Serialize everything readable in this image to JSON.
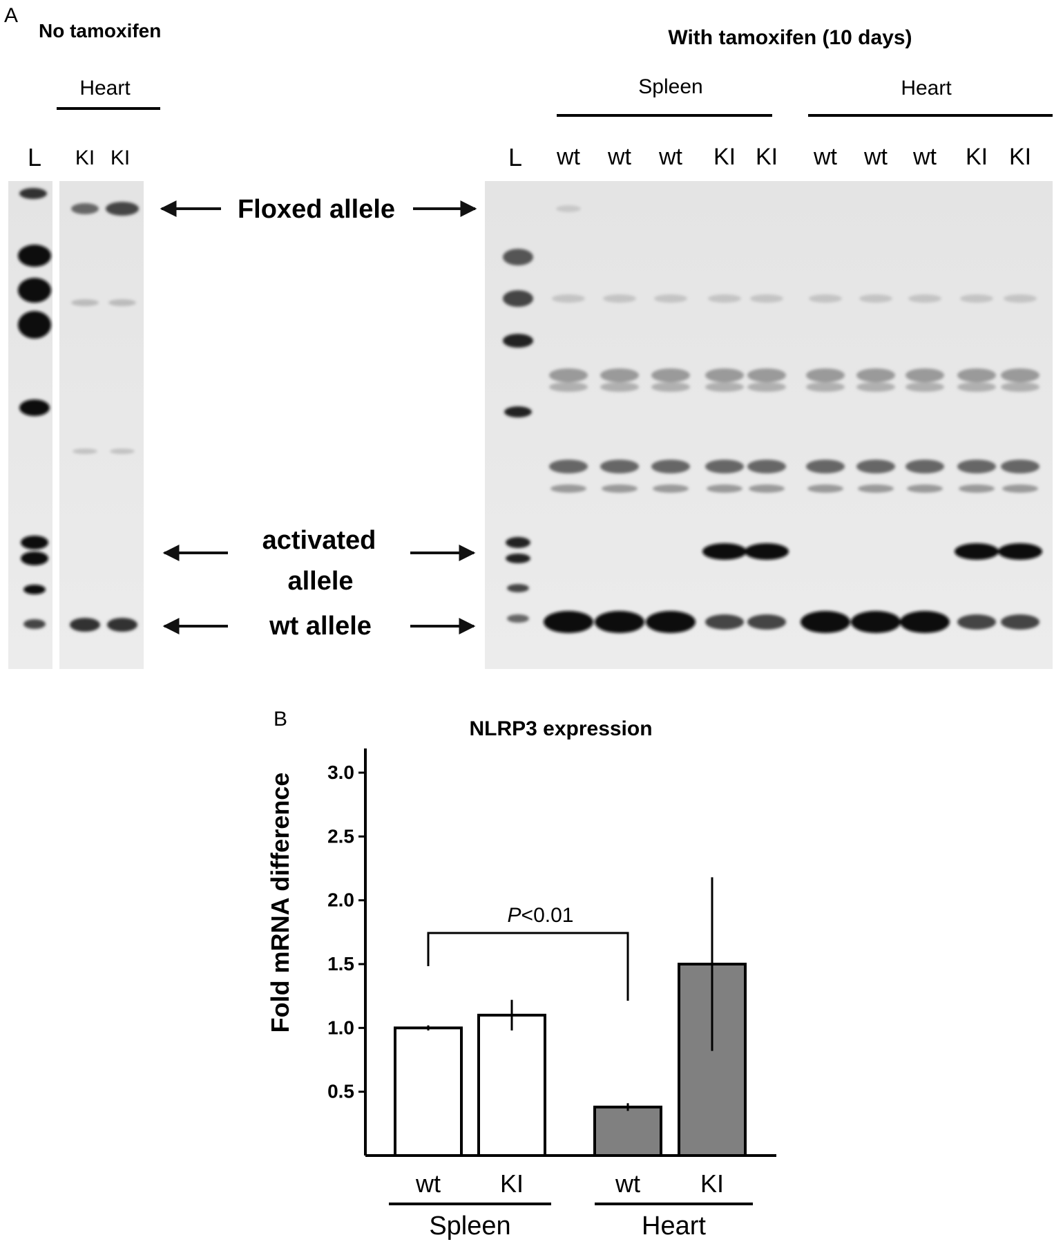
{
  "panel_a": {
    "panel_letter": "A",
    "left_title": "No tamoxifen",
    "right_title": "With tamoxifen (10 days)",
    "left_group": "Heart",
    "right_groups": [
      "Spleen",
      "Heart"
    ],
    "ladder_label": "L",
    "left_lanes": [
      "KI",
      "KI"
    ],
    "right_lanes": [
      "wt",
      "wt",
      "wt",
      "KI",
      "KI",
      "wt",
      "wt",
      "wt",
      "KI",
      "KI"
    ],
    "band_labels": {
      "floxed": "Floxed allele",
      "activated_line1": "activated",
      "activated_line2": "allele",
      "wt": "wt allele"
    }
  },
  "panel_b": {
    "panel_letter": "B",
    "chart_data": {
      "type": "bar",
      "title": "NLRP3 expression",
      "ylabel": "Fold mRNA difference",
      "xlabel": "",
      "ylim": [
        0,
        3.0
      ],
      "yticks": [
        "3.0",
        "2.5",
        "2.0",
        "1.5",
        "1.0",
        "0.5"
      ],
      "categories": [
        "wt",
        "KI",
        "wt",
        "KI"
      ],
      "groups": [
        "Spleen",
        "Heart"
      ],
      "values": [
        1.0,
        1.1,
        0.38,
        1.5
      ],
      "errors": [
        0.02,
        0.12,
        0.03,
        0.68
      ],
      "bar_colors": [
        "#ffffff",
        "#ffffff",
        "#808080",
        "#808080"
      ],
      "significance": {
        "label_italic": "P",
        "label_rest": "<0.01",
        "between": [
          0,
          2
        ]
      },
      "grid": false
    }
  }
}
